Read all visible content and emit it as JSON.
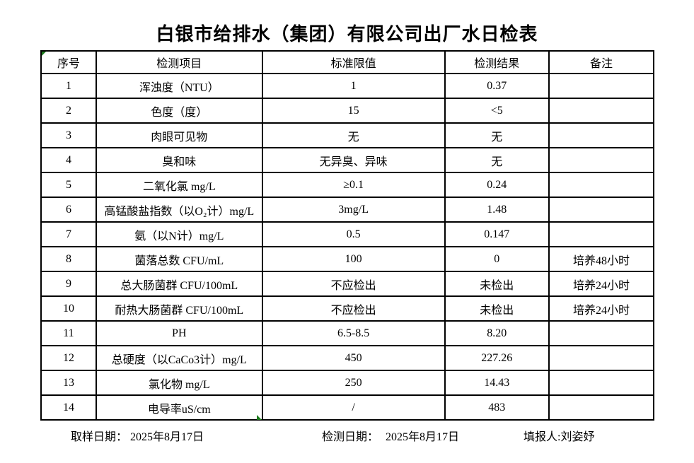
{
  "title": "白银市给排水（集团）有限公司出厂水日检表",
  "table": {
    "headers": [
      "序号",
      "检测项目",
      "标准限值",
      "检测结果",
      "备注"
    ],
    "rows": [
      [
        "1",
        "浑浊度（NTU）",
        "1",
        "0.37",
        ""
      ],
      [
        "2",
        "色度（度）",
        "15",
        "<5",
        ""
      ],
      [
        "3",
        "肉眼可见物",
        "无",
        "无",
        ""
      ],
      [
        "4",
        "臭和味",
        "无异臭、异味",
        "无",
        ""
      ],
      [
        "5",
        "二氧化氯 mg/L",
        "≥0.1",
        "0.24",
        ""
      ],
      [
        "6",
        "高锰酸盐指数（以O₂计）mg/L",
        "3mg/L",
        "1.48",
        ""
      ],
      [
        "7",
        "氨（以N计）mg/L",
        "0.5",
        "0.147",
        ""
      ],
      [
        "8",
        "菌落总数 CFU/mL",
        "100",
        "0",
        "培养48小时"
      ],
      [
        "9",
        "总大肠菌群 CFU/100mL",
        "不应检出",
        "未检出",
        "培养24小时"
      ],
      [
        "10",
        "耐热大肠菌群 CFU/100mL",
        "不应检出",
        "未检出",
        "培养24小时"
      ],
      [
        "11",
        "PH",
        "6.5-8.5",
        "8.20",
        ""
      ],
      [
        "12",
        "总硬度（以CaCo3计）mg/L",
        "450",
        "227.26",
        ""
      ],
      [
        "13",
        "氯化物 mg/L",
        "250",
        "14.43",
        ""
      ],
      [
        "14",
        "电导率uS/cm",
        "/",
        "483",
        ""
      ]
    ]
  },
  "footer": {
    "items": [
      {
        "label": "取样日期：",
        "value": "2025年8月17日"
      },
      {
        "label": "检测日期：",
        "value": "2025年8月17日"
      },
      {
        "label": "填报人:",
        "value": "刘姿妤"
      }
    ]
  },
  "colors": {
    "border": "#000000",
    "artifact_green": "#1c7a1c",
    "background": "#ffffff"
  }
}
